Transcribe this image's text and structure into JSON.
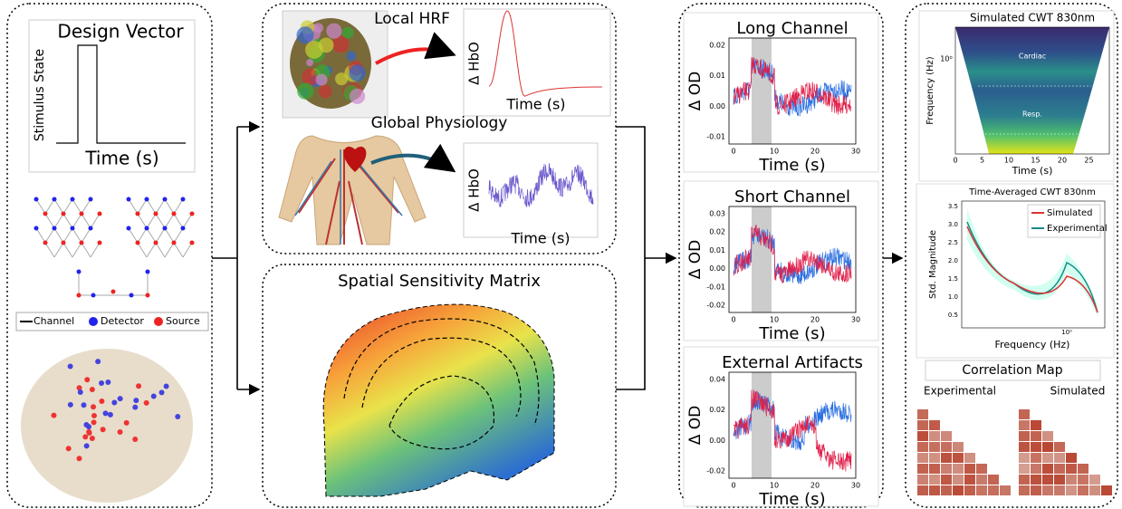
{
  "design_vector": {
    "title": "Design Vector",
    "ylabel": "Stimulus State",
    "xlabel": "Time (s)"
  },
  "legend": {
    "channel": "Channel",
    "detector": "Detector",
    "source": "Source"
  },
  "local_hrf": {
    "title": "Local HRF",
    "ylabel": "Δ HbO",
    "xlabel": "Time (s)"
  },
  "global_physiology": {
    "title": "Global Physiology",
    "ylabel": "Δ HbO",
    "xlabel": "Time (s)"
  },
  "sensitivity": {
    "title": "Spatial Sensitivity Matrix"
  },
  "channels": [
    {
      "title": "Long Channel",
      "ylabel": "Δ OD",
      "xlabel": "Time (s)",
      "yticks": [
        "0.02",
        "0.01",
        "0.00",
        "-0.01"
      ],
      "xticks": [
        "0",
        "10",
        "20",
        "30"
      ]
    },
    {
      "title": "Short Channel",
      "ylabel": "Δ OD",
      "xlabel": "Time (s)",
      "yticks": [
        "0.03",
        "0.02",
        "0.01",
        "0.00",
        "-0.01",
        "-0.02"
      ],
      "xticks": [
        "0",
        "10",
        "20",
        "30"
      ]
    },
    {
      "title": "External Artifacts",
      "ylabel": "Δ OD",
      "xlabel": "Time (s)",
      "yticks": [
        "0.04",
        "0.02",
        "0.00",
        "-0.02"
      ],
      "xticks": [
        "0",
        "10",
        "20",
        "30"
      ]
    }
  ],
  "cwt": {
    "title": "Simulated CWT 830nm",
    "ylabel": "Frequency (Hz)",
    "xlabel": "Time (s)",
    "ytick": "10⁰",
    "xticks": [
      "0",
      "5",
      "10",
      "15",
      "20",
      "25"
    ],
    "bands": [
      "Cardiac",
      "Resp."
    ]
  },
  "time_averaged": {
    "title": "Time-Averaged CWT 830nm",
    "ylabel": "Std. Magnitude",
    "xlabel": "Frequency (Hz)",
    "yticks": [
      "3.5",
      "3.0",
      "2.5",
      "2.0",
      "1.5",
      "1.0",
      "0.5"
    ],
    "xtick": "10⁰",
    "legend": [
      "Simulated",
      "Experimental"
    ]
  },
  "correlation": {
    "title": "Correlation Map",
    "labels": [
      "Experimental",
      "Simulated"
    ]
  }
}
